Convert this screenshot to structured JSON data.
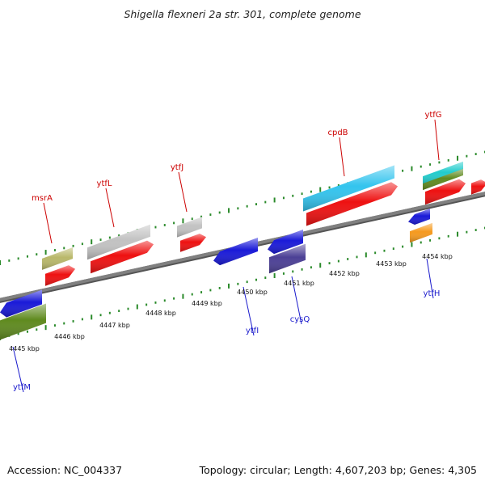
{
  "title": "Shigella flexneri 2a str. 301, complete genome",
  "footer": {
    "accession": "Accession: NC_004337",
    "topology": "Topology: circular; Length: 4,607,203 bp; Genes: 4,305"
  },
  "scale_labels": [
    "4445 kbp",
    "4446 kbp",
    "4447 kbp",
    "4448 kbp",
    "4449 kbp",
    "4450 kbp",
    "4451 kbp",
    "4452 kbp",
    "4453 kbp",
    "4454 kbp"
  ],
  "colors": {
    "backbone": "#808080",
    "tick": "#2a8a2a",
    "forward_label": "#cc0000",
    "reverse_label": "#1a1acc"
  },
  "forward_labels": [
    "msrA",
    "ytfL",
    "ytfJ",
    "cpdB",
    "ytfG"
  ],
  "reverse_labels": [
    "ytfM",
    "ytfI",
    "cysQ",
    "ytfH"
  ],
  "feature_colors": {
    "red": "#ee1111",
    "grey": "#c2c2c2",
    "olive": "#b9b86a",
    "skyblue": "#33c4ee",
    "cyan": "#22cccc",
    "green": "#5f8a1f",
    "blue": "#1a1ad8",
    "navy": "#4b3f95",
    "orange": "#f59a1e"
  }
}
